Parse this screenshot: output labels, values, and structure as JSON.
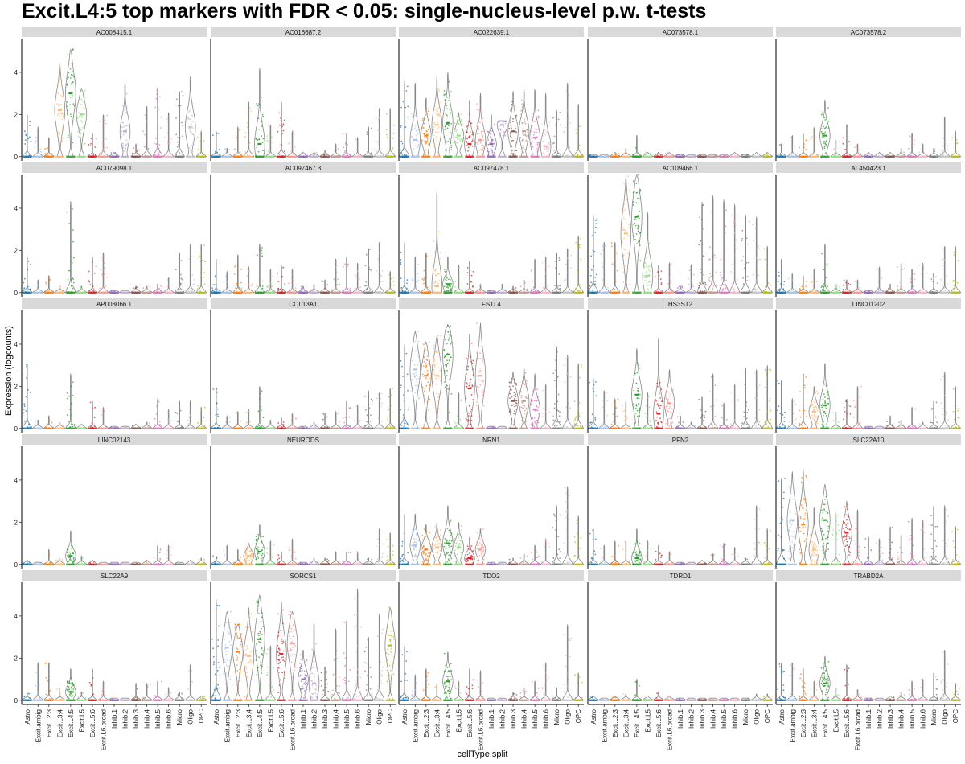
{
  "chart_data": {
    "type": "violin",
    "title": "Excit.L4:5 top markers with FDR < 0.05: single-nucleus-level p.w. t-tests",
    "xlabel": "cellType.split",
    "ylabel": "Expression (logcounts)",
    "ylim": [
      -0.2,
      5.6
    ],
    "yticks": [
      0,
      2,
      4
    ],
    "grid": false,
    "facet_layout": "5 rows x 5 columns, shared axes",
    "categories": [
      "Astro",
      "Excit.ambig",
      "Excit.L2:3",
      "Excit.L3:4",
      "Excit.L4:5",
      "Excit.L5",
      "Excit.L5:6",
      "Excit.L6.broad",
      "Inhib.1",
      "Inhib.2",
      "Inhib.3",
      "Inhib.4",
      "Inhib.5",
      "Inhib.6",
      "Micro",
      "Oligo",
      "OPC"
    ],
    "category_colors": [
      "#1f77b4",
      "#aec7e8",
      "#ff7f0e",
      "#ffbb78",
      "#2ca02c",
      "#98df8a",
      "#d62728",
      "#ff9896",
      "#9467bd",
      "#c5b0d5",
      "#8c564b",
      "#c49c94",
      "#e377c2",
      "#f7b6d2",
      "#7f7f7f",
      "#c7c7c7",
      "#bcbd22"
    ],
    "panels": [
      {
        "gene": "AC008415.1",
        "max": [
          2.0,
          1.4,
          0.9,
          4.5,
          5.1,
          3.2,
          1.1,
          2.0,
          0.2,
          3.5,
          0.6,
          2.4,
          3.3,
          2.1,
          3.1,
          3.8,
          1.2
        ],
        "median": [
          0,
          0,
          0,
          2.2,
          3.0,
          2.0,
          0,
          0,
          0,
          1.2,
          0,
          0,
          0,
          0,
          0,
          1.4,
          0
        ]
      },
      {
        "gene": "AC016687.2",
        "max": [
          1.2,
          0.4,
          1.4,
          2.6,
          4.2,
          1.5,
          2.6,
          1.2,
          0.2,
          0.2,
          0.3,
          0.6,
          1.1,
          0.9,
          1.4,
          2.3,
          2.3
        ],
        "median": [
          0,
          0,
          0,
          0,
          0.6,
          0,
          0,
          0,
          0,
          0,
          0,
          0,
          0,
          0,
          0,
          0,
          0
        ]
      },
      {
        "gene": "AC022639.1",
        "max": [
          3.6,
          3.5,
          2.8,
          3.8,
          4.0,
          2.1,
          2.7,
          3.0,
          2.0,
          1.7,
          3.1,
          3.2,
          3.2,
          3.0,
          2.2,
          3.5,
          2.5
        ],
        "median": [
          0,
          0.8,
          1.0,
          1.5,
          1.6,
          1.0,
          0.6,
          0.8,
          0.6,
          1.5,
          1.2,
          1.2,
          0.9,
          0.5,
          0,
          0,
          0
        ]
      },
      {
        "gene": "AC073578.1",
        "max": [
          0.1,
          0.1,
          0.2,
          0.4,
          1.0,
          0.2,
          0.2,
          0.2,
          0.1,
          0.1,
          0.1,
          0.1,
          0.1,
          0.2,
          0.1,
          0.2,
          0.2
        ],
        "median": [
          0,
          0,
          0,
          0,
          0,
          0,
          0,
          0,
          0,
          0,
          0,
          0,
          0,
          0,
          0,
          0,
          0
        ]
      },
      {
        "gene": "AC073578.2",
        "max": [
          0.6,
          1.0,
          1.1,
          1.4,
          2.7,
          0.8,
          1.5,
          0.6,
          0.2,
          0.2,
          0.2,
          0.4,
          1.1,
          0.6,
          0.4,
          1.9,
          1.2
        ],
        "median": [
          0,
          0,
          0,
          0,
          1.0,
          0,
          0,
          0,
          0,
          0,
          0,
          0,
          0,
          0,
          0,
          0,
          0
        ]
      },
      {
        "gene": "AC079098.1",
        "max": [
          1.7,
          0.6,
          0.8,
          0.3,
          4.3,
          0.3,
          1.7,
          1.9,
          0.1,
          0.1,
          0.3,
          0.3,
          0.4,
          0.7,
          1.9,
          2.3,
          2.3
        ],
        "median": [
          0,
          0,
          0,
          0,
          0,
          0,
          0,
          0,
          0,
          0,
          0,
          0,
          0,
          0,
          0,
          0,
          0
        ]
      },
      {
        "gene": "AC097467.3",
        "max": [
          1.6,
          1.0,
          1.8,
          1.2,
          2.3,
          1.1,
          1.3,
          1.1,
          0.3,
          0.4,
          0.6,
          1.6,
          1.7,
          1.4,
          2.1,
          2.4,
          1.0
        ],
        "median": [
          0,
          0,
          0,
          0,
          0,
          0,
          0,
          0,
          0,
          0,
          0,
          0,
          0,
          0,
          0,
          0,
          0
        ]
      },
      {
        "gene": "AC097478.1",
        "max": [
          2.4,
          1.7,
          1.9,
          4.8,
          1.7,
          1.3,
          1.5,
          0.4,
          0.1,
          0.4,
          0.3,
          0.6,
          1.6,
          1.7,
          1.9,
          2.1,
          2.7
        ],
        "median": [
          0,
          0,
          0,
          0.3,
          0.4,
          0,
          0,
          0,
          0,
          0,
          0,
          0,
          0,
          0,
          0,
          0,
          0
        ]
      },
      {
        "gene": "AC109466.1",
        "max": [
          3.7,
          2.4,
          2.4,
          5.5,
          5.6,
          3.8,
          1.3,
          1.4,
          0.3,
          1.3,
          4.3,
          4.6,
          4.4,
          4.2,
          3.7,
          3.6,
          2.2
        ],
        "median": [
          0,
          0,
          0,
          2.8,
          3.6,
          0.8,
          0,
          0,
          0,
          0,
          0,
          0,
          0,
          0,
          0,
          0,
          0
        ]
      },
      {
        "gene": "AL450423.1",
        "max": [
          1.6,
          0.9,
          0.8,
          1.1,
          2.3,
          0.4,
          0.6,
          0.6,
          0.1,
          1.2,
          0.4,
          1.4,
          1.1,
          1.4,
          0.9,
          2.2,
          2.2
        ],
        "median": [
          0,
          0,
          0,
          0,
          0,
          0,
          0,
          0,
          0,
          0,
          0,
          0,
          0,
          0,
          0,
          0,
          0
        ]
      },
      {
        "gene": "AP003066.1",
        "max": [
          3.1,
          0.4,
          0.6,
          0.3,
          2.6,
          0.2,
          1.3,
          1.0,
          0.1,
          0.1,
          0.2,
          0.3,
          1.4,
          0.9,
          1.3,
          1.3,
          1.0
        ],
        "median": [
          0,
          0,
          0,
          0,
          0,
          0,
          0,
          0,
          0,
          0,
          0,
          0,
          0,
          0,
          0,
          0,
          0
        ]
      },
      {
        "gene": "COL13A1",
        "max": [
          1.9,
          0.6,
          0.8,
          0.9,
          2.0,
          0.4,
          0.5,
          0.7,
          0.1,
          0.3,
          0.7,
          0.8,
          1.3,
          1.1,
          1.8,
          1.7,
          1.9
        ],
        "median": [
          0,
          0,
          0,
          0,
          0,
          0,
          0,
          0,
          0,
          0,
          0,
          0,
          0,
          0,
          0,
          0,
          0
        ]
      },
      {
        "gene": "FSTL4",
        "max": [
          4.0,
          4.6,
          4.1,
          4.4,
          4.9,
          1.7,
          4.5,
          5.0,
          0.1,
          0.1,
          2.7,
          2.9,
          2.6,
          2.1,
          3.9,
          3.5,
          3.1
        ],
        "median": [
          0,
          2.8,
          2.5,
          2.5,
          3.5,
          0,
          1.9,
          2.5,
          0,
          0,
          1.3,
          1.3,
          0.9,
          0,
          0,
          0,
          0
        ]
      },
      {
        "gene": "HS3ST2",
        "max": [
          2.4,
          1.8,
          1.4,
          1.3,
          3.8,
          1.7,
          4.3,
          2.8,
          0.6,
          0.3,
          1.5,
          2.6,
          1.2,
          2.1,
          2.9,
          2.8,
          3.0
        ],
        "median": [
          0,
          0,
          0,
          0,
          1.6,
          0,
          0.7,
          1.2,
          0,
          0,
          0,
          0,
          0,
          0,
          0,
          0,
          0
        ]
      },
      {
        "gene": "LINC01202",
        "max": [
          2.3,
          1.4,
          2.6,
          2.0,
          3.1,
          0.8,
          1.4,
          2.0,
          0.1,
          0.1,
          0.6,
          0.4,
          1.0,
          0.3,
          1.3,
          2.7,
          2.0
        ],
        "median": [
          0,
          0,
          0,
          0.8,
          1.1,
          0,
          0,
          0,
          0,
          0,
          0,
          0,
          0,
          0,
          0,
          0,
          0
        ]
      },
      {
        "gene": "LINC02143",
        "max": [
          0.2,
          0.1,
          0.7,
          0.3,
          1.6,
          0.4,
          0.2,
          0.1,
          0.1,
          0.1,
          0.1,
          0.2,
          0.9,
          0.9,
          0.1,
          0.2,
          0.3
        ],
        "median": [
          0,
          0,
          0,
          0,
          0.4,
          0,
          0,
          0,
          0,
          0,
          0,
          0,
          0,
          0,
          0,
          0,
          0
        ]
      },
      {
        "gene": "NEURODS",
        "max": [
          0.4,
          0.9,
          0.7,
          1.0,
          1.9,
          1.1,
          0.6,
          1.2,
          0.1,
          0.3,
          0.3,
          0.6,
          0.6,
          0.6,
          0.3,
          1.7,
          1.5
        ],
        "median": [
          0,
          0,
          0,
          0.4,
          0.6,
          0,
          0,
          0,
          0,
          0,
          0,
          0,
          0,
          0,
          0,
          0,
          0
        ]
      },
      {
        "gene": "NRN1",
        "max": [
          2.4,
          2.4,
          1.9,
          2.0,
          2.8,
          2.0,
          1.3,
          1.7,
          0.1,
          0.1,
          0.3,
          0.5,
          0.9,
          1.2,
          2.8,
          3.7,
          2.3
        ],
        "median": [
          0,
          0.9,
          0.7,
          0.8,
          1.0,
          0.8,
          0.3,
          0.7,
          0,
          0,
          0,
          0,
          0,
          0,
          0,
          0,
          0
        ]
      },
      {
        "gene": "PFN2",
        "max": [
          1.7,
          0.9,
          1.1,
          1.1,
          1.7,
          1.1,
          0.9,
          0.6,
          0.1,
          0.1,
          0.2,
          0.5,
          1.0,
          0.8,
          0.3,
          2.8,
          1.7
        ],
        "median": [
          0,
          0,
          0,
          0,
          0.3,
          0,
          0,
          0,
          0,
          0,
          0,
          0,
          0,
          0,
          0,
          0,
          0
        ]
      },
      {
        "gene": "SLC22A10",
        "max": [
          4.1,
          4.4,
          4.5,
          2.7,
          3.8,
          2.5,
          3.0,
          2.6,
          1.3,
          1.2,
          1.8,
          1.4,
          2.2,
          2.1,
          2.8,
          2.8,
          1.8
        ],
        "median": [
          0,
          2.1,
          1.9,
          0.7,
          2.1,
          0,
          1.5,
          0,
          0,
          0,
          0,
          0,
          0,
          0,
          0,
          0,
          0
        ]
      },
      {
        "gene": "SLC22A9",
        "max": [
          0.4,
          1.8,
          1.8,
          0.6,
          1.5,
          0.4,
          1.5,
          0.9,
          0.1,
          0.1,
          0.8,
          0.8,
          0.9,
          0.6,
          0.4,
          1.7,
          0.2
        ],
        "median": [
          0,
          0,
          0,
          0,
          0.4,
          0,
          0,
          0,
          0,
          0,
          0,
          0,
          0,
          0,
          0,
          0,
          0
        ]
      },
      {
        "gene": "SORCS1",
        "max": [
          4.8,
          4.2,
          3.6,
          4.4,
          5.0,
          2.6,
          4.7,
          4.2,
          2.4,
          3.7,
          1.6,
          3.4,
          3.8,
          5.3,
          3.0,
          4.1,
          4.4
        ],
        "median": [
          0,
          2.5,
          2.3,
          2.1,
          2.9,
          0,
          2.2,
          2.7,
          1.0,
          0.8,
          0,
          0,
          0,
          0,
          0,
          0,
          2.6
        ]
      },
      {
        "gene": "TDO2",
        "max": [
          2.6,
          1.2,
          1.5,
          0.8,
          2.3,
          0.9,
          1.5,
          1.4,
          0.1,
          0.1,
          0.4,
          0.6,
          0.9,
          1.8,
          0.6,
          3.6,
          1.3
        ],
        "median": [
          0,
          0,
          0,
          0,
          0.9,
          0,
          0,
          0,
          0,
          0,
          0,
          0,
          0,
          0,
          0,
          0,
          0
        ]
      },
      {
        "gene": "TDRD1",
        "max": [
          0.2,
          0.1,
          0.2,
          0.3,
          1.0,
          0.2,
          0.4,
          0.2,
          0.1,
          0.1,
          0.1,
          0.1,
          0.1,
          0.1,
          0.1,
          0.3,
          0.3
        ],
        "median": [
          0,
          0,
          0,
          0,
          0,
          0,
          0,
          0,
          0,
          0,
          0,
          0,
          0,
          0,
          0,
          0,
          0
        ]
      },
      {
        "gene": "TRABD2A",
        "max": [
          1.8,
          1.8,
          1.5,
          0.9,
          2.1,
          0.6,
          1.7,
          0.5,
          0.1,
          0.1,
          0.2,
          0.4,
          0.9,
          1.0,
          1.3,
          2.4,
          0.8
        ],
        "median": [
          0,
          0,
          0,
          0,
          0.8,
          0,
          0,
          0,
          0,
          0,
          0,
          0,
          0,
          0,
          0,
          0,
          0
        ]
      }
    ]
  }
}
